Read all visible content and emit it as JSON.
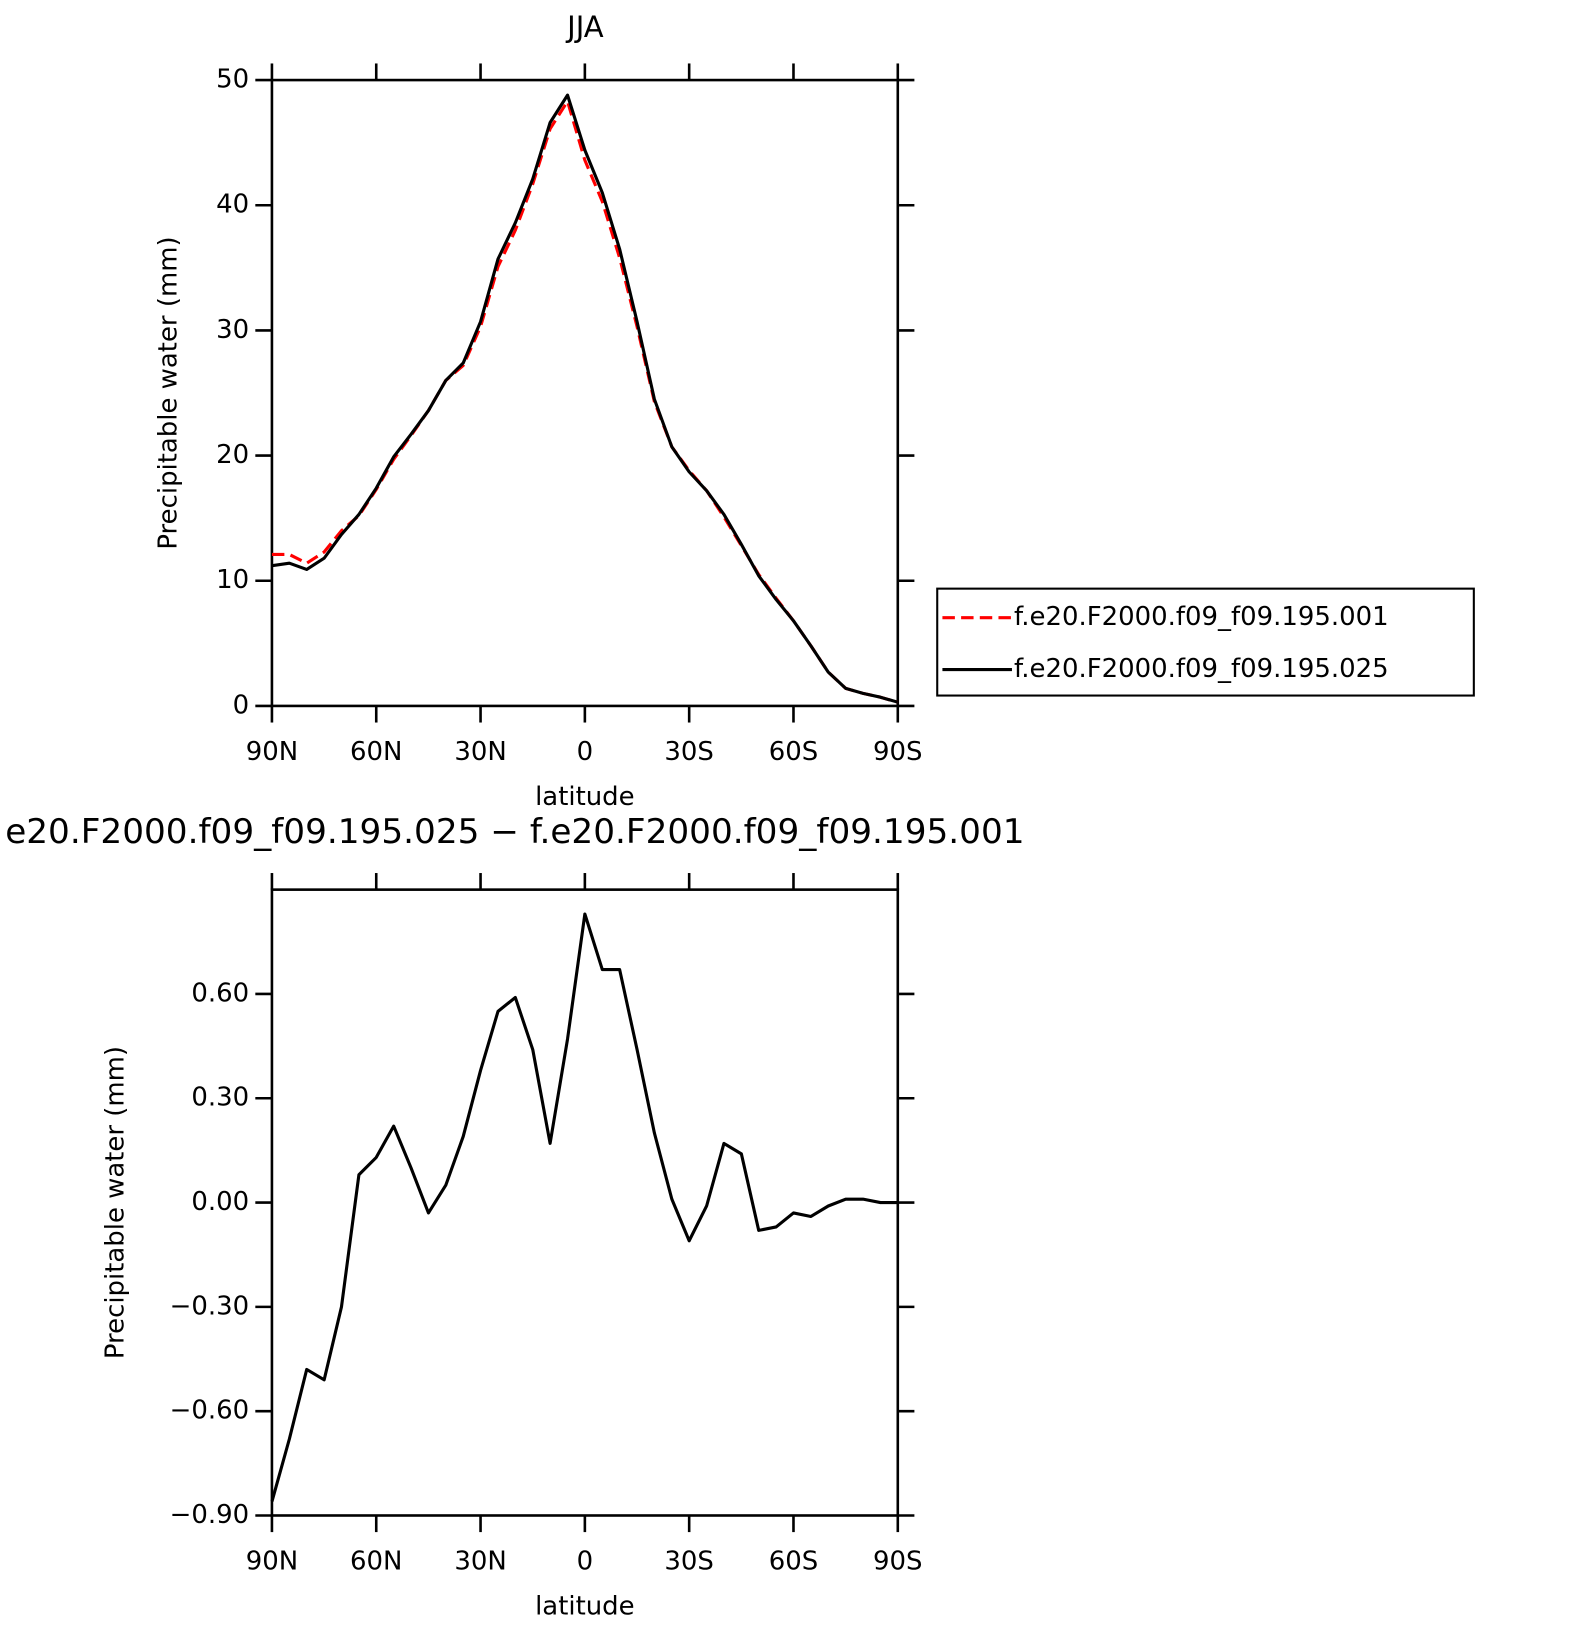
{
  "chart_data": [
    {
      "type": "line",
      "title": "JJA",
      "xlabel": "latitude",
      "ylabel": "Precipitable water (mm)",
      "x": [
        90,
        85,
        80,
        75,
        70,
        65,
        60,
        55,
        50,
        45,
        40,
        35,
        30,
        25,
        20,
        15,
        10,
        5,
        0,
        -5,
        -10,
        -15,
        -20,
        -25,
        -30,
        -35,
        -40,
        -45,
        -50,
        -55,
        -60,
        -65,
        -70,
        -75,
        -80,
        -85,
        -90
      ],
      "series": [
        {
          "name": "f.e20.F2000.f09_f09.195.001",
          "color": "#ff0000",
          "dashed": true,
          "values": [
            12.1,
            12.1,
            11.4,
            12.3,
            14.0,
            15.2,
            17.3,
            19.7,
            21.6,
            23.6,
            26.0,
            27.2,
            30.3,
            35.1,
            38.0,
            41.7,
            46.1,
            48.3,
            43.6,
            40.3,
            35.8,
            30.3,
            24.3,
            20.7,
            18.8,
            17.2,
            15.1,
            12.8,
            10.5,
            8.6,
            6.8,
            4.8,
            2.7,
            1.4,
            1.0,
            0.7,
            0.3
          ]
        },
        {
          "name": "f.e20.F2000.f09_f09.195.025",
          "color": "#000000",
          "dashed": false,
          "values": [
            11.2,
            11.4,
            10.9,
            11.8,
            13.7,
            15.3,
            17.4,
            19.9,
            21.7,
            23.6,
            26.0,
            27.4,
            30.7,
            35.7,
            38.6,
            42.1,
            46.6,
            48.8,
            44.4,
            41.0,
            36.5,
            30.7,
            24.5,
            20.7,
            18.7,
            17.2,
            15.3,
            12.9,
            10.4,
            8.5,
            6.8,
            4.8,
            2.7,
            1.4,
            1.0,
            0.7,
            0.3
          ]
        }
      ],
      "xlim": [
        90,
        -90
      ],
      "xticks": [
        {
          "value": 90,
          "label": "90N"
        },
        {
          "value": 60,
          "label": "60N"
        },
        {
          "value": 30,
          "label": "30N"
        },
        0,
        {
          "value": -30,
          "label": "30S"
        },
        {
          "value": -60,
          "label": "60S"
        },
        {
          "value": -90,
          "label": "90S"
        }
      ],
      "ylim": [
        0,
        50
      ],
      "yticks": [
        0,
        10,
        20,
        30,
        40,
        50
      ],
      "legend": "right"
    },
    {
      "type": "line",
      "title": "e20.F2000.f09_f09.195.025 − f.e20.F2000.f09_f09.195.001",
      "xlabel": "latitude",
      "ylabel": "Precipitable water (mm)",
      "x": [
        90,
        85,
        80,
        75,
        70,
        65,
        60,
        55,
        50,
        45,
        40,
        35,
        30,
        25,
        20,
        15,
        10,
        5,
        0,
        -5,
        -10,
        -15,
        -20,
        -25,
        -30,
        -35,
        -40,
        -45,
        -50,
        -55,
        -60,
        -65,
        -70,
        -75,
        -80,
        -85,
        -90
      ],
      "series": [
        {
          "color": "#000000",
          "dashed": false,
          "values": [
            -0.86,
            -0.68,
            -0.48,
            -0.51,
            -0.3,
            0.08,
            0.13,
            0.22,
            0.1,
            -0.03,
            0.05,
            0.19,
            0.38,
            0.55,
            0.59,
            0.44,
            0.17,
            0.47,
            0.83,
            0.67,
            0.67,
            0.44,
            0.2,
            0.01,
            -0.11,
            -0.01,
            0.17,
            0.14,
            -0.08,
            -0.07,
            -0.03,
            -0.04,
            -0.01,
            0.01,
            0.01,
            0.0,
            0.0
          ]
        }
      ],
      "xlim": [
        90,
        -90
      ],
      "xticks": [
        {
          "value": 90,
          "label": "90N"
        },
        {
          "value": 60,
          "label": "60N"
        },
        {
          "value": 30,
          "label": "30N"
        },
        0,
        {
          "value": -30,
          "label": "30S"
        },
        {
          "value": -60,
          "label": "60S"
        },
        {
          "value": -90,
          "label": "90S"
        }
      ],
      "ylim": [
        -0.9,
        0.9
      ],
      "yticks": [
        {
          "value": -0.9,
          "label": "−0.90"
        },
        {
          "value": -0.6,
          "label": "−0.60"
        },
        {
          "value": -0.3,
          "label": "−0.30"
        },
        {
          "value": 0,
          "label": "0.00"
        },
        {
          "value": 0.3,
          "label": "0.30"
        },
        {
          "value": 0.6,
          "label": "0.60"
        }
      ]
    }
  ]
}
